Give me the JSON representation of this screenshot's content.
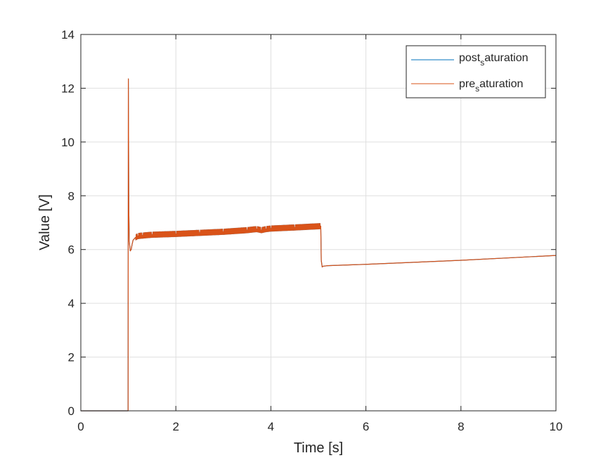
{
  "chart_data": {
    "type": "line",
    "title": "",
    "xlabel": "Time [s]",
    "ylabel": "Value [V]",
    "xlim": [
      0,
      10
    ],
    "ylim": [
      0,
      14
    ],
    "xticks": [
      0,
      2,
      4,
      6,
      8,
      10
    ],
    "yticks": [
      0,
      2,
      4,
      6,
      8,
      10,
      12,
      14
    ],
    "xtick_labels": [
      "0",
      "2",
      "4",
      "6",
      "8",
      "10"
    ],
    "ytick_labels": [
      "0",
      "2",
      "4",
      "6",
      "8",
      "10",
      "12",
      "14"
    ],
    "grid": true,
    "legend_position": "top-right",
    "series": [
      {
        "name_main": "post",
        "name_sub": "s",
        "name_rest": "aturation",
        "color": "#0072BD",
        "x": [
          0,
          0.995,
          1.0,
          1.005,
          1.01,
          1.02,
          1.04,
          1.06,
          1.08,
          1.1,
          1.15,
          1.2,
          1.3,
          1.5,
          2.0,
          2.5,
          3.0,
          3.5,
          3.7,
          3.8,
          3.9,
          4.0,
          4.5,
          5.05,
          5.06,
          5.08,
          5.1,
          5.2,
          6.0,
          8.0,
          10.0
        ],
        "y": [
          0,
          0,
          12.35,
          10.0,
          7.5,
          6.3,
          5.95,
          6.0,
          6.2,
          6.35,
          6.45,
          6.5,
          6.52,
          6.55,
          6.58,
          6.62,
          6.66,
          6.72,
          6.76,
          6.72,
          6.76,
          6.78,
          6.82,
          6.87,
          5.6,
          5.35,
          5.38,
          5.4,
          5.45,
          5.6,
          5.78
        ]
      },
      {
        "name_main": "pre",
        "name_sub": "s",
        "name_rest": "aturation",
        "color": "#D95319",
        "x": [
          0,
          0.995,
          1.0,
          1.005,
          1.01,
          1.02,
          1.04,
          1.06,
          1.08,
          1.1,
          1.15,
          1.2,
          1.3,
          1.5,
          2.0,
          2.5,
          3.0,
          3.5,
          3.7,
          3.8,
          3.9,
          4.0,
          4.5,
          5.05,
          5.06,
          5.08,
          5.1,
          5.2,
          6.0,
          8.0,
          10.0
        ],
        "y": [
          0,
          0,
          12.35,
          10.0,
          7.5,
          6.3,
          5.95,
          6.0,
          6.2,
          6.35,
          6.45,
          6.5,
          6.52,
          6.55,
          6.58,
          6.62,
          6.66,
          6.72,
          6.76,
          6.72,
          6.76,
          6.78,
          6.82,
          6.87,
          5.6,
          5.35,
          5.38,
          5.4,
          5.45,
          5.6,
          5.78
        ]
      }
    ],
    "noise_band": {
      "x_start": 1.15,
      "x_end": 5.05,
      "amplitude": 0.1
    }
  }
}
